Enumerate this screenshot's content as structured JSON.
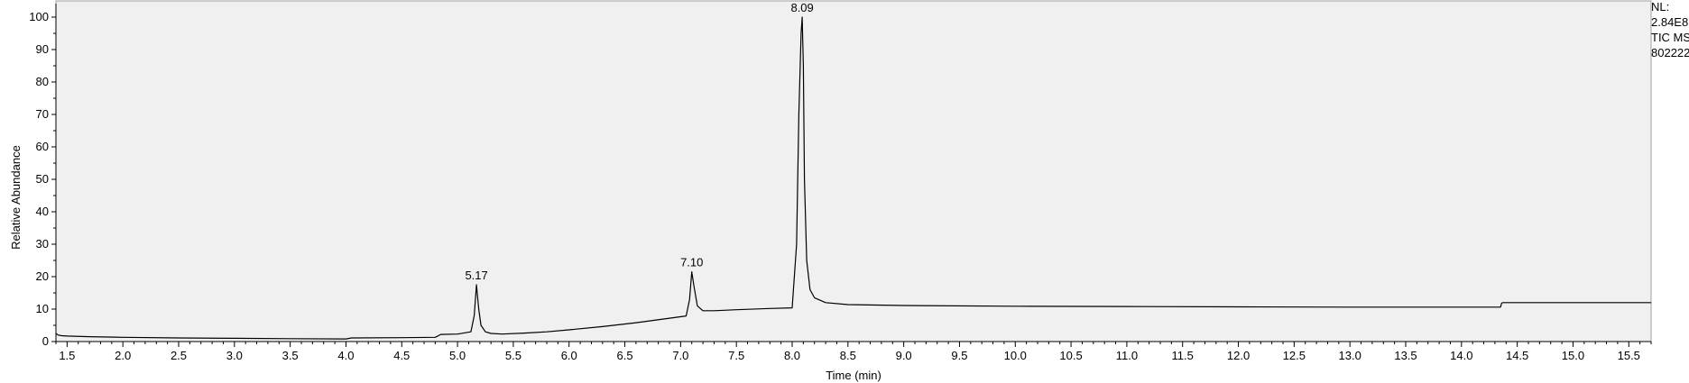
{
  "chart_data": {
    "type": "line",
    "title": "",
    "xlabel": "Time (min)",
    "ylabel": "Relative Abundance",
    "xlim": [
      1.4,
      15.7
    ],
    "ylim": [
      0,
      100
    ],
    "grid": false,
    "x_tick_labels": [
      "1.5",
      "2.0",
      "2.5",
      "3.0",
      "3.5",
      "4.0",
      "4.5",
      "5.0",
      "5.5",
      "6.0",
      "6.5",
      "7.0",
      "7.5",
      "8.0",
      "8.5",
      "9.0",
      "9.5",
      "10.0",
      "10.5",
      "11.0",
      "11.5",
      "12.0",
      "12.5",
      "13.0",
      "13.5",
      "14.0",
      "14.5",
      "15.0",
      "15.5"
    ],
    "y_tick_labels": [
      "0",
      "10",
      "20",
      "30",
      "40",
      "50",
      "60",
      "70",
      "80",
      "90",
      "100"
    ],
    "series": [
      {
        "x": [
          1.4,
          1.42,
          1.45,
          1.5,
          1.7,
          2.0,
          2.5,
          3.0,
          3.5,
          4.0,
          4.05,
          4.5,
          4.8,
          4.85,
          5.0,
          5.12,
          5.15,
          5.17,
          5.19,
          5.21,
          5.25,
          5.3,
          5.4,
          5.6,
          5.8,
          6.0,
          6.3,
          6.6,
          6.9,
          7.05,
          7.08,
          7.1,
          7.12,
          7.15,
          7.2,
          7.3,
          7.5,
          7.8,
          8.0,
          8.04,
          8.06,
          8.08,
          8.09,
          8.1,
          8.11,
          8.13,
          8.16,
          8.2,
          8.3,
          8.5,
          9.0,
          10.0,
          11.0,
          12.0,
          13.0,
          14.0,
          14.35,
          14.36,
          14.37,
          15.0,
          15.7
        ],
        "y": [
          2.5,
          2.0,
          1.8,
          1.7,
          1.5,
          1.3,
          1.1,
          1.0,
          0.9,
          0.8,
          1.1,
          1.2,
          1.3,
          2.2,
          2.3,
          3.0,
          8.0,
          17.5,
          10.0,
          5.0,
          3.0,
          2.5,
          2.3,
          2.6,
          3.0,
          3.6,
          4.6,
          5.8,
          7.2,
          7.9,
          13.0,
          21.5,
          17.0,
          11.0,
          9.5,
          9.5,
          9.8,
          10.2,
          10.4,
          30.0,
          70.0,
          95.0,
          100.0,
          85.0,
          50.0,
          25.0,
          16.0,
          13.5,
          12.0,
          11.4,
          11.1,
          10.9,
          10.8,
          10.7,
          10.6,
          10.6,
          10.6,
          11.8,
          12.0,
          12.0,
          12.0
        ]
      }
    ],
    "peak_labels": [
      {
        "x": 5.17,
        "y": 17.5,
        "label": "5.17"
      },
      {
        "x": 7.1,
        "y": 21.5,
        "label": "7.10"
      },
      {
        "x": 8.09,
        "y": 100.0,
        "label": "8.09"
      }
    ],
    "info_lines": [
      "NL:",
      "2.84E8",
      "TIC  MS",
      "802222"
    ]
  },
  "colors": {
    "plot_bg": "#f0f0f0",
    "trace": "#000000",
    "axis": "#000000",
    "frame": "#a0a0a0"
  }
}
